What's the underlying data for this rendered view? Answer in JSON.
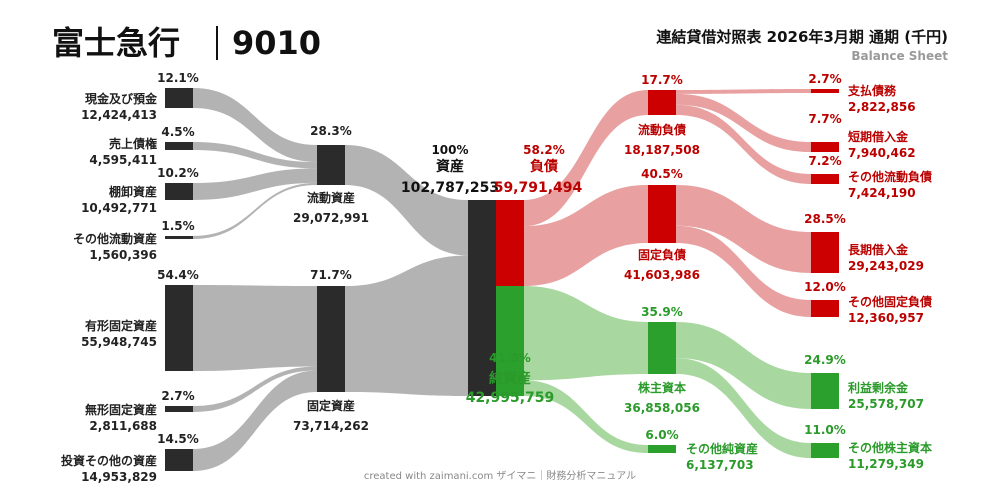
{
  "header": {
    "company": "富士急行",
    "ticker": "9010",
    "report_title": "連結貸借対照表 2026年3月期 通期 (千円)",
    "report_subtitle": "Balance Sheet",
    "credit": "created with zaimani.com ザイマニ｜財務分析マニュアル"
  },
  "colors": {
    "asset": "#2b2b2b",
    "asset_flow": "#b3b3b3",
    "liability": "#cc0000",
    "liability_flow": "#e8a0a0",
    "equity": "#2ca02c",
    "equity_flow": "#a8d8a0"
  },
  "chart_data": {
    "type": "sankey",
    "unit": "千円",
    "nodes": [
      {
        "id": "cash",
        "name": "現金及び預金",
        "value": "12,424,413",
        "pct": "12.1%",
        "group": "asset"
      },
      {
        "id": "receivables",
        "name": "売上債権",
        "value": "4,595,411",
        "pct": "4.5%",
        "group": "asset"
      },
      {
        "id": "inventory",
        "name": "棚卸資産",
        "value": "10,492,771",
        "pct": "10.2%",
        "group": "asset"
      },
      {
        "id": "other_current",
        "name": "その他流動資産",
        "value": "1,560,396",
        "pct": "1.5%",
        "group": "asset"
      },
      {
        "id": "tangible",
        "name": "有形固定資産",
        "value": "55,948,745",
        "pct": "54.4%",
        "group": "asset"
      },
      {
        "id": "intangible",
        "name": "無形固定資産",
        "value": "2,811,688",
        "pct": "2.7%",
        "group": "asset"
      },
      {
        "id": "investments",
        "name": "投資その他の資産",
        "value": "14,953,829",
        "pct": "14.5%",
        "group": "asset"
      },
      {
        "id": "current_assets",
        "name": "流動資産",
        "value": "29,072,991",
        "pct": "28.3%",
        "group": "asset"
      },
      {
        "id": "fixed_assets",
        "name": "固定資産",
        "value": "73,714,262",
        "pct": "71.7%",
        "group": "asset"
      },
      {
        "id": "total_assets",
        "name": "資産",
        "value": "102,787,253",
        "pct": "100%",
        "group": "asset"
      },
      {
        "id": "liabilities",
        "name": "負債",
        "value": "59,791,494",
        "pct": "58.2%",
        "group": "liability"
      },
      {
        "id": "net_assets",
        "name": "純資産",
        "value": "42,995,759",
        "pct": "41.8%",
        "group": "equity"
      },
      {
        "id": "current_liab",
        "name": "流動負債",
        "value": "18,187,508",
        "pct": "17.7%",
        "group": "liability"
      },
      {
        "id": "fixed_liab",
        "name": "固定負債",
        "value": "41,603,986",
        "pct": "40.5%",
        "group": "liability"
      },
      {
        "id": "shareholders_eq",
        "name": "株主資本",
        "value": "36,858,056",
        "pct": "35.9%",
        "group": "equity"
      },
      {
        "id": "other_net",
        "name": "その他純資産",
        "value": "6,137,703",
        "pct": "6.0%",
        "group": "equity"
      },
      {
        "id": "payables",
        "name": "支払債務",
        "value": "2,822,856",
        "pct": "2.7%",
        "group": "liability"
      },
      {
        "id": "short_loans",
        "name": "短期借入金",
        "value": "7,940,462",
        "pct": "7.7%",
        "group": "liability"
      },
      {
        "id": "other_current_liab",
        "name": "その他流動負債",
        "value": "7,424,190",
        "pct": "7.2%",
        "group": "liability"
      },
      {
        "id": "long_loans",
        "name": "長期借入金",
        "value": "29,243,029",
        "pct": "28.5%",
        "group": "liability"
      },
      {
        "id": "other_fixed_liab",
        "name": "その他固定負債",
        "value": "12,360,957",
        "pct": "12.0%",
        "group": "liability"
      },
      {
        "id": "retained",
        "name": "利益剰余金",
        "value": "25,578,707",
        "pct": "24.9%",
        "group": "equity"
      },
      {
        "id": "other_sh_cap",
        "name": "その他株主資本",
        "value": "11,279,349",
        "pct": "11.0%",
        "group": "equity"
      }
    ],
    "links": [
      {
        "source": "cash",
        "target": "current_assets"
      },
      {
        "source": "receivables",
        "target": "current_assets"
      },
      {
        "source": "inventory",
        "target": "current_assets"
      },
      {
        "source": "other_current",
        "target": "current_assets"
      },
      {
        "source": "tangible",
        "target": "fixed_assets"
      },
      {
        "source": "intangible",
        "target": "fixed_assets"
      },
      {
        "source": "investments",
        "target": "fixed_assets"
      },
      {
        "source": "current_assets",
        "target": "total_assets"
      },
      {
        "source": "fixed_assets",
        "target": "total_assets"
      },
      {
        "source": "liabilities",
        "target": "current_liab"
      },
      {
        "source": "liabilities",
        "target": "fixed_liab"
      },
      {
        "source": "net_assets",
        "target": "shareholders_eq"
      },
      {
        "source": "net_assets",
        "target": "other_net"
      },
      {
        "source": "current_liab",
        "target": "payables"
      },
      {
        "source": "current_liab",
        "target": "short_loans"
      },
      {
        "source": "current_liab",
        "target": "other_current_liab"
      },
      {
        "source": "fixed_liab",
        "target": "long_loans"
      },
      {
        "source": "fixed_liab",
        "target": "other_fixed_liab"
      },
      {
        "source": "shareholders_eq",
        "target": "retained"
      },
      {
        "source": "shareholders_eq",
        "target": "other_sh_cap"
      }
    ]
  }
}
